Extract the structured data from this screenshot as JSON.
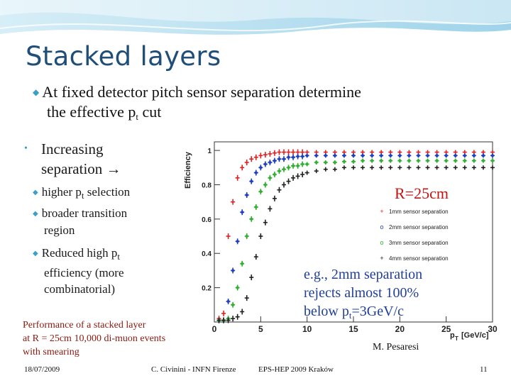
{
  "slide": {
    "title": "Stacked layers",
    "bullet1_line1": "At fixed detector pitch sensor separation determine",
    "bullet1_line2_pre": "the effective p",
    "bullet1_line2_sub": "t",
    "bullet1_line2_post": " cut",
    "bullet2_line1": "Increasing",
    "bullet2_line2": "separation",
    "bullet2_arrow": "→",
    "sub_items": {
      "higher_pre": "higher p",
      "higher_sub": "t",
      "higher_post": " selection",
      "broader_l1": "broader transition",
      "broader_l2": "region",
      "reduced_pre": "Reduced  high p",
      "reduced_sub": "t",
      "reduced_l2": "efficiency (more",
      "reduced_l3": "combinatorial)"
    },
    "perf_l1": "Performance of a stacked layer",
    "perf_l2": "at R = 25cm  10,000 di-muon events",
    "perf_l3": "with smearing",
    "radius_label": "R=25cm",
    "note_l1": "e.g., 2mm separation",
    "note_l2": "rejects almost 100%",
    "note_l3_pre": "below p",
    "note_l3_sub": "t",
    "note_l3_post": "=3GeV/c",
    "author": "M. Pesaresi",
    "footer_date": "18/07/2009",
    "footer_org": "C. Civinini - INFN Firenze",
    "footer_conf": "EPS-HEP 2009 Kraków",
    "footer_page": "11"
  },
  "chart_data": {
    "type": "scatter",
    "xlabel": "p",
    "xlabel_sub": "T",
    "xlabel_unit": "[GeV/c]",
    "ylabel": "Efficiency",
    "xlim": [
      0,
      30
    ],
    "ylim": [
      0,
      1.05
    ],
    "x_ticks": [
      0,
      5,
      10,
      15,
      20,
      25,
      30
    ],
    "y_ticks": [
      0.2,
      0.4,
      0.6,
      0.8,
      1
    ],
    "legend_position": "right",
    "series": [
      {
        "name": "1mm sensor separation",
        "marker": "+",
        "color": "#e02020",
        "x": [
          0.5,
          1,
          1.5,
          2,
          2.5,
          3,
          3.5,
          4,
          4.5,
          5,
          5.5,
          6,
          6.5,
          7,
          7.5,
          8,
          8.5,
          9,
          9.5,
          10,
          11,
          12,
          13,
          14,
          15,
          16,
          17,
          18,
          19,
          20,
          21,
          22,
          23,
          24,
          25,
          26,
          27,
          28,
          29,
          30
        ],
        "y": [
          0.02,
          0.05,
          0.5,
          0.7,
          0.84,
          0.9,
          0.93,
          0.95,
          0.96,
          0.97,
          0.975,
          0.98,
          0.985,
          0.99,
          0.99,
          0.99,
          0.99,
          0.99,
          0.99,
          0.99,
          0.99,
          0.99,
          0.99,
          0.99,
          0.99,
          0.99,
          0.99,
          0.99,
          0.99,
          0.99,
          0.99,
          0.99,
          0.99,
          0.99,
          0.99,
          0.99,
          0.99,
          0.99,
          0.99,
          0.99
        ]
      },
      {
        "name": "2mm sensor separation",
        "marker": "o",
        "color": "#1f3fc0",
        "x": [
          0.5,
          1,
          1.5,
          2,
          2.5,
          3,
          3.5,
          4,
          4.5,
          5,
          5.5,
          6,
          6.5,
          7,
          7.5,
          8,
          8.5,
          9,
          9.5,
          10,
          11,
          12,
          13,
          14,
          15,
          16,
          17,
          18,
          19,
          20,
          21,
          22,
          23,
          24,
          25,
          26,
          27,
          28,
          29,
          30
        ],
        "y": [
          0.01,
          0.01,
          0.12,
          0.3,
          0.47,
          0.64,
          0.74,
          0.82,
          0.87,
          0.9,
          0.92,
          0.93,
          0.94,
          0.95,
          0.95,
          0.96,
          0.96,
          0.965,
          0.965,
          0.97,
          0.97,
          0.97,
          0.97,
          0.97,
          0.97,
          0.97,
          0.97,
          0.97,
          0.97,
          0.97,
          0.97,
          0.97,
          0.97,
          0.97,
          0.97,
          0.97,
          0.97,
          0.97,
          0.97,
          0.97
        ]
      },
      {
        "name": "3mm sensor separation",
        "marker": "o",
        "color": "#30b030",
        "x": [
          0.5,
          1,
          1.5,
          2,
          2.5,
          3,
          3.5,
          4,
          4.5,
          5,
          5.5,
          6,
          6.5,
          7,
          7.5,
          8,
          8.5,
          9,
          9.5,
          10,
          11,
          12,
          13,
          14,
          15,
          16,
          17,
          18,
          19,
          20,
          21,
          22,
          23,
          24,
          25,
          26,
          27,
          28,
          29,
          30
        ],
        "y": [
          0.01,
          0.01,
          0.02,
          0.1,
          0.2,
          0.34,
          0.5,
          0.6,
          0.67,
          0.76,
          0.8,
          0.84,
          0.86,
          0.88,
          0.89,
          0.9,
          0.91,
          0.91,
          0.92,
          0.92,
          0.93,
          0.93,
          0.93,
          0.935,
          0.935,
          0.94,
          0.94,
          0.94,
          0.94,
          0.94,
          0.94,
          0.94,
          0.94,
          0.94,
          0.94,
          0.94,
          0.94,
          0.94,
          0.94,
          0.94
        ]
      },
      {
        "name": "4mm sensor separation",
        "marker": "+",
        "color": "#202020",
        "x": [
          0.5,
          1,
          1.5,
          2,
          2.5,
          3,
          3.5,
          4,
          4.5,
          5,
          5.5,
          6,
          6.5,
          7,
          7.5,
          8,
          8.5,
          9,
          9.5,
          10,
          11,
          12,
          13,
          14,
          15,
          16,
          17,
          18,
          19,
          20,
          21,
          22,
          23,
          24,
          25,
          26,
          27,
          28,
          29,
          30
        ],
        "y": [
          0.01,
          0.01,
          0.01,
          0.02,
          0.03,
          0.06,
          0.14,
          0.26,
          0.38,
          0.5,
          0.58,
          0.66,
          0.72,
          0.77,
          0.8,
          0.82,
          0.84,
          0.85,
          0.86,
          0.87,
          0.88,
          0.89,
          0.89,
          0.9,
          0.9,
          0.9,
          0.9,
          0.9,
          0.9,
          0.9,
          0.9,
          0.9,
          0.9,
          0.9,
          0.9,
          0.9,
          0.9,
          0.9,
          0.9,
          0.9
        ]
      }
    ]
  }
}
